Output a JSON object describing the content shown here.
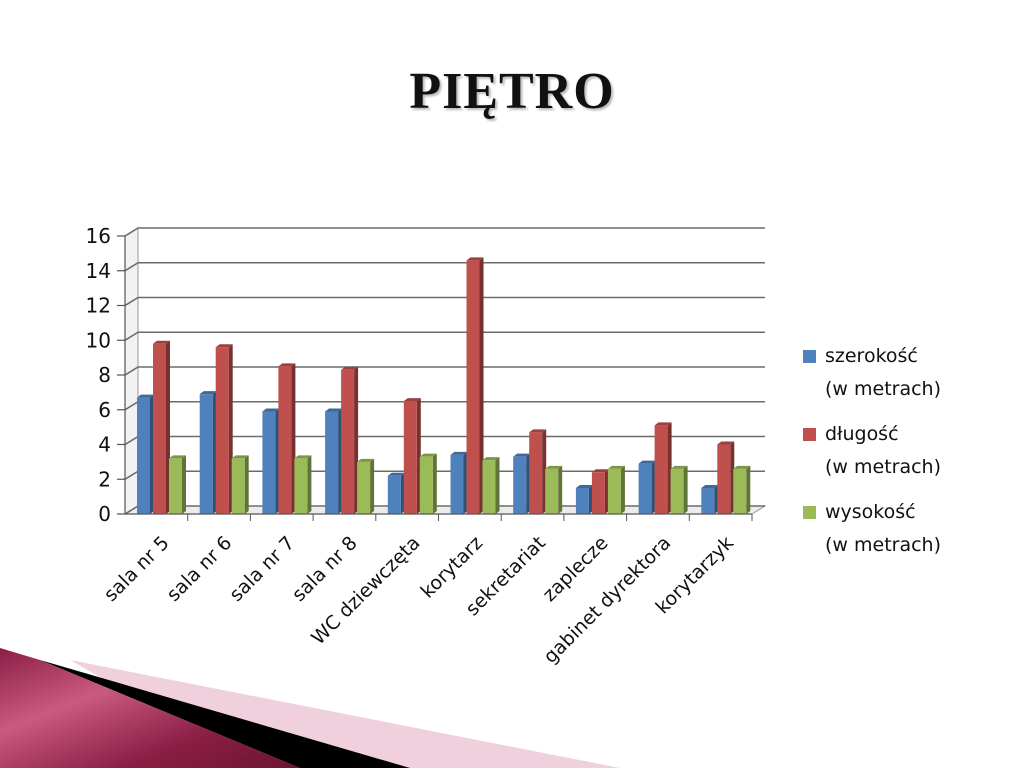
{
  "slide": {
    "title": "PIĘTRO"
  },
  "chart_data": {
    "type": "bar",
    "title": "",
    "xlabel": "",
    "ylabel": "",
    "ylim": [
      0,
      16
    ],
    "yticks": [
      0,
      2,
      4,
      6,
      8,
      10,
      12,
      14,
      16
    ],
    "grid": true,
    "legend_position": "right",
    "categories": [
      "sala nr 5",
      "sala nr 6",
      "sala nr 7",
      "sala nr 8",
      "WC dziewczęta",
      "korytarz",
      "sekretariat",
      "zaplecze",
      "gabinet dyrektora",
      "korytarzyk"
    ],
    "series": [
      {
        "name": "szerokość",
        "unit_line": "(w metrach)",
        "color": "#4f81bd",
        "values": [
          6.7,
          6.9,
          5.9,
          5.9,
          2.2,
          3.4,
          3.3,
          1.5,
          2.9,
          1.5
        ]
      },
      {
        "name": "długość",
        "unit_line": "(w metrach)",
        "color": "#c0504d",
        "values": [
          9.8,
          9.6,
          8.5,
          8.3,
          6.5,
          14.6,
          4.7,
          2.4,
          5.1,
          4.0
        ]
      },
      {
        "name": "wysokość",
        "unit_line": "(w metrach)",
        "color": "#9bbb59",
        "values": [
          3.2,
          3.2,
          3.2,
          3.0,
          3.3,
          3.1,
          2.6,
          2.6,
          2.6,
          2.6
        ]
      }
    ]
  }
}
